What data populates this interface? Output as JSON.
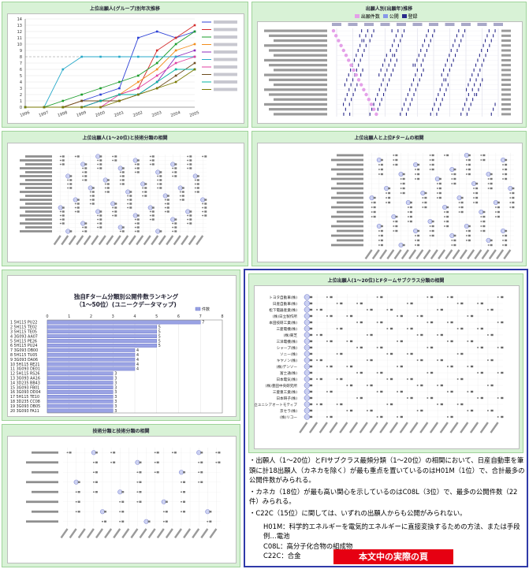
{
  "panels": {
    "p1_title": "上位出願人(グループ)別年次推移",
    "p2_title": "出願人別(出願年)推移",
    "p3_title": "上位出願人(1〜20位)と技術分類の相関",
    "p4_title": "上位出願人と上位Fタームの相関",
    "p6_title": "上位出願人(1〜20位)とFタームサブクラス分類の相関",
    "p7_title": "技術分類と技術分類の相関"
  },
  "p2_legend": [
    "出願件数",
    "公開",
    "登録"
  ],
  "rank_chart": {
    "title_line1": "独自Fターム分類別公開件数ランキング",
    "title_line2": "（1〜50位）(ユニークデータマップ)",
    "legend": "件数"
  },
  "blue_panel": {
    "rows": [
      "トヨタ自動車(株)",
      "日産自動車(株)",
      "松下電器産業(株)",
      "(株)日立製作所",
      "本田技研工業(株)",
      "三菱電機(株)",
      "(株)東芝",
      "三洋電機(株)",
      "シャープ(株)",
      "ソニー(株)",
      "キヤノン(株)",
      "(株)デンソー",
      "富士通(株)",
      "日本電気(株)",
      "(株)豊田中央研究所",
      "三菱重工業(株)",
      "日本碍子(株)",
      "(株)日立ユニシアオートモティブ",
      "京セラ(株)",
      "(株)リコー"
    ]
  },
  "notes": {
    "n1": "・出願人（1〜20位）とFIサブクラス最頻分類（1〜20位）の相関において、日産自動車を筆頭に計18出願人（カネカを除く）が最も重点を置いているのはH01M（1位）で、合計最多の公開件数がみられる。",
    "n2": "・カネカ（18位）が最も高い関心を示しているのはC08L（3位）で、最多の公開件数（22件）みられる。",
    "n3": "・C22C（15位）に関しては、いずれの出願人からも公開がみられない。",
    "d1": "H01M：科学的エネルギーを電気的エネルギーに直接変換するための方法、または手段　例…電池",
    "d2": "C08L：高分子化合物の組成物",
    "d3": "C22C：合金"
  },
  "badge": "本文中の実際の頁",
  "chart_data": [
    {
      "type": "line",
      "panel": "top-left",
      "title": "",
      "ylim": [
        0,
        14
      ],
      "y_ticks": [
        "0",
        "1",
        "2",
        "3",
        "4",
        "5",
        "6",
        "7",
        "8",
        "9",
        "10",
        "11",
        "12",
        "13",
        "14"
      ],
      "x": [
        "1996",
        "1997",
        "1998",
        "1999",
        "2000",
        "2001",
        "2002",
        "2003",
        "2004",
        "2005"
      ],
      "legend_position": "right",
      "series": [
        {
          "color": "#2b3fd6",
          "values": [
            0,
            0,
            0,
            1,
            2,
            3,
            11,
            12,
            11,
            12
          ]
        },
        {
          "color": "#d42b2b",
          "values": [
            0,
            0,
            0,
            0,
            1,
            2,
            3,
            9,
            11,
            13
          ]
        },
        {
          "color": "#1a9c2a",
          "values": [
            0,
            0,
            1,
            2,
            3,
            4,
            5,
            7,
            10,
            12
          ]
        },
        {
          "color": "#f28e1c",
          "values": [
            0,
            0,
            0,
            1,
            1,
            2,
            4,
            6,
            9,
            10
          ]
        },
        {
          "color": "#8e2bbd",
          "values": [
            0,
            0,
            0,
            0,
            1,
            1,
            2,
            4,
            8,
            9
          ]
        },
        {
          "color": "#27a9c9",
          "values": [
            0,
            0,
            6,
            8,
            8,
            8,
            8,
            8,
            8,
            8
          ]
        },
        {
          "color": "#e03fa0",
          "values": [
            0,
            0,
            0,
            0,
            0,
            2,
            3,
            5,
            7,
            8
          ]
        },
        {
          "color": "#6d4c1e",
          "values": [
            0,
            0,
            0,
            1,
            1,
            1,
            2,
            3,
            5,
            7
          ]
        },
        {
          "color": "#00b3a0",
          "values": [
            0,
            0,
            0,
            0,
            1,
            2,
            2,
            4,
            6,
            6
          ]
        },
        {
          "color": "#7a7a00",
          "values": [
            0,
            0,
            0,
            0,
            0,
            1,
            2,
            3,
            4,
            6
          ]
        }
      ]
    },
    {
      "type": "bar",
      "orientation": "horizontal",
      "panel": "rank",
      "xlim": [
        0,
        8
      ],
      "x_ticks": [
        "0",
        "1",
        "2",
        "3",
        "4",
        "5",
        "6",
        "7",
        "8"
      ],
      "categories": [
        "5H115 PU22",
        "5H115 TE02",
        "5H115 TE05",
        "3G093 AA07",
        "5H115 PE26",
        "5H115 PU24",
        "3G093 DB00",
        "5H115 TU05",
        "3G093 DA06",
        "5H115 RE21",
        "3G093 DE01",
        "5H115 RS26",
        "3G093 AA16",
        "3D235 BB43",
        "3G093 FB01",
        "3G093 DD04",
        "5H115 TE10",
        "3D235 CC08",
        "3G093 DB05",
        "3G093 FA11"
      ],
      "values": [
        7,
        5,
        5,
        5,
        5,
        5,
        4,
        4,
        4,
        4,
        4,
        3,
        3,
        3,
        3,
        3,
        3,
        3,
        3,
        3
      ]
    }
  ]
}
